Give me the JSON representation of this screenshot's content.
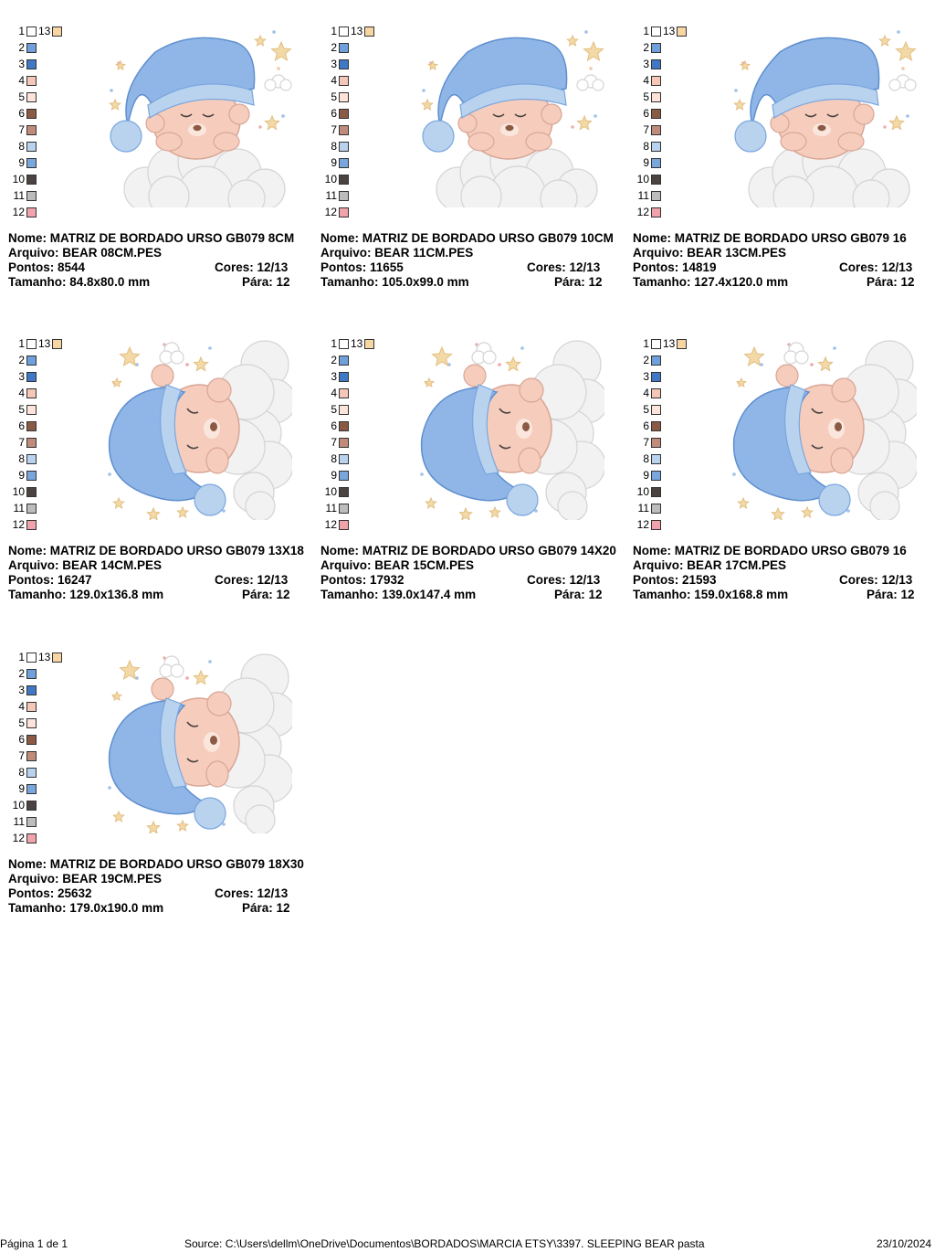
{
  "palette": {
    "numbers": [
      "1",
      "2",
      "3",
      "4",
      "5",
      "6",
      "7",
      "8",
      "9",
      "10",
      "11",
      "12"
    ],
    "extra_number": "13",
    "colors": [
      "#ffffff",
      "#6fa0dc",
      "#3f78c4",
      "#f4c7b8",
      "#fde3da",
      "#8a5a44",
      "#c08b7a",
      "#b9d3ef",
      "#7aa6de",
      "#4a4341",
      "#bcbcbc",
      "#f0a3aa"
    ],
    "extra_color": "#f7d6a4"
  },
  "designs": [
    {
      "nome_label": "Nome:",
      "nome": "MATRIZ DE BORDADO URSO GB079 8CM",
      "arquivo_label": "Arquivo:",
      "arquivo": "BEAR 08CM.PES",
      "pontos_label": "Pontos:",
      "pontos": "8544",
      "cores_label": "Cores:",
      "cores": "12/13",
      "tamanho_label": "Tamanho:",
      "tamanho": "84.8x80.0 mm",
      "para_label": "Pára:",
      "para": "12",
      "variant": "front"
    },
    {
      "nome_label": "Nome:",
      "nome": "MATRIZ DE BORDADO URSO GB079 10CM",
      "arquivo_label": "Arquivo:",
      "arquivo": "BEAR 11CM.PES",
      "pontos_label": "Pontos:",
      "pontos": "11655",
      "cores_label": "Cores:",
      "cores": "12/13",
      "tamanho_label": "Tamanho:",
      "tamanho": "105.0x99.0 mm",
      "para_label": "Pára:",
      "para": "12",
      "variant": "front"
    },
    {
      "nome_label": "Nome:",
      "nome": "MATRIZ DE BORDADO URSO GB079 16",
      "arquivo_label": "Arquivo:",
      "arquivo": "BEAR 13CM.PES",
      "pontos_label": "Pontos:",
      "pontos": "14819",
      "cores_label": "Cores:",
      "cores": "12/13",
      "tamanho_label": "Tamanho:",
      "tamanho": "127.4x120.0 mm",
      "para_label": "Pára:",
      "para": "12",
      "variant": "front"
    },
    {
      "nome_label": "Nome:",
      "nome": "MATRIZ DE BORDADO URSO GB079 13X18",
      "arquivo_label": "Arquivo:",
      "arquivo": "BEAR 14CM.PES",
      "pontos_label": "Pontos:",
      "pontos": "16247",
      "cores_label": "Cores:",
      "cores": "12/13",
      "tamanho_label": "Tamanho:",
      "tamanho": "129.0x136.8 mm",
      "para_label": "Pára:",
      "para": "12",
      "variant": "side"
    },
    {
      "nome_label": "Nome:",
      "nome": "MATRIZ DE BORDADO URSO GB079 14X20",
      "arquivo_label": "Arquivo:",
      "arquivo": "BEAR 15CM.PES",
      "pontos_label": "Pontos:",
      "pontos": "17932",
      "cores_label": "Cores:",
      "cores": "12/13",
      "tamanho_label": "Tamanho:",
      "tamanho": "139.0x147.4 mm",
      "para_label": "Pára:",
      "para": "12",
      "variant": "side"
    },
    {
      "nome_label": "Nome:",
      "nome": "MATRIZ DE BORDADO URSO GB079 16",
      "arquivo_label": "Arquivo:",
      "arquivo": "BEAR 17CM.PES",
      "pontos_label": "Pontos:",
      "pontos": "21593",
      "cores_label": "Cores:",
      "cores": "12/13",
      "tamanho_label": "Tamanho:",
      "tamanho": "159.0x168.8 mm",
      "para_label": "Pára:",
      "para": "12",
      "variant": "side"
    },
    {
      "nome_label": "Nome:",
      "nome": "MATRIZ DE BORDADO URSO GB079 18X30",
      "arquivo_label": "Arquivo:",
      "arquivo": "BEAR 19CM.PES",
      "pontos_label": "Pontos:",
      "pontos": "25632",
      "cores_label": "Cores:",
      "cores": "12/13",
      "tamanho_label": "Tamanho:",
      "tamanho": "179.0x190.0 mm",
      "para_label": "Pára:",
      "para": "12",
      "variant": "side"
    }
  ],
  "footer": {
    "page": "Página 1 de 1",
    "source": "Source: C:\\Users\\dellm\\OneDrive\\Documentos\\BORDADOS\\MARCIA ETSY\\3397. SLEEPING BEAR pasta",
    "date": "23/10/2024"
  }
}
